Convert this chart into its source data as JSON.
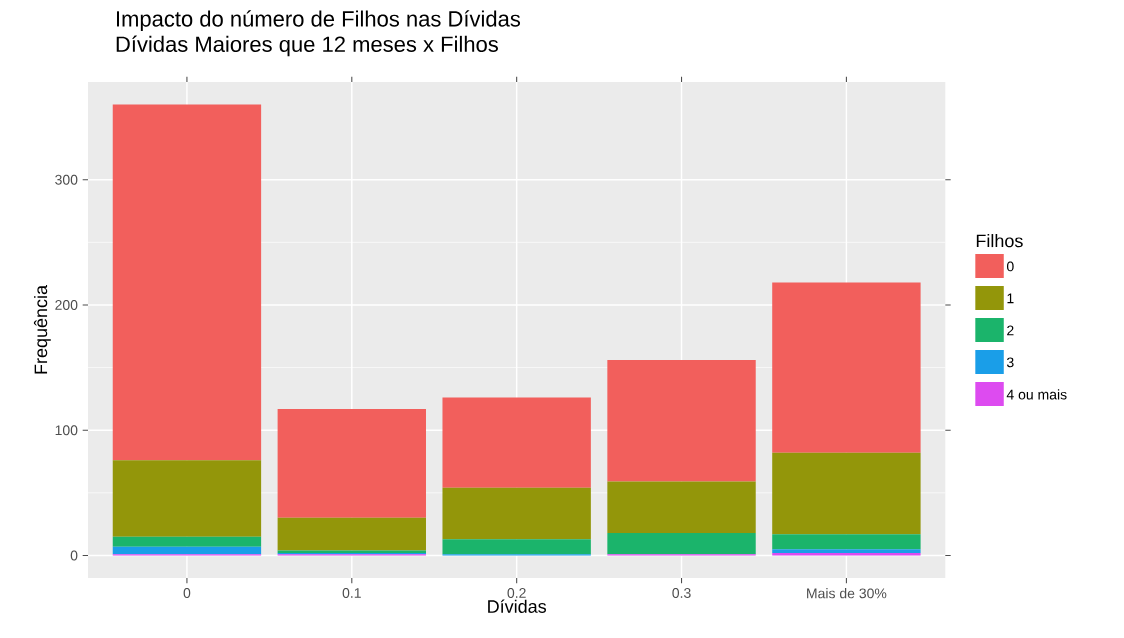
{
  "chart_data": {
    "type": "bar",
    "title": "Impacto do número de Filhos nas Dívidas",
    "subtitle": "Dívidas Maiores que 12 meses x Filhos",
    "xlabel": "Dívidas",
    "ylabel": "Frequência",
    "legend_title": "Filhos",
    "categories": [
      "0",
      "0.1",
      "0.2",
      "0.3",
      "Mais de 30%"
    ],
    "stacked": true,
    "series": [
      {
        "name": "4 ou mais",
        "color": "#dd4bf0",
        "values": [
          1,
          1,
          0,
          1,
          2
        ]
      },
      {
        "name": "3",
        "color": "#1a9ee8",
        "values": [
          6,
          1,
          1,
          0,
          3
        ]
      },
      {
        "name": "2",
        "color": "#1bb46b",
        "values": [
          8,
          2,
          12,
          17,
          12
        ]
      },
      {
        "name": "1",
        "color": "#93960a",
        "values": [
          61,
          26,
          41,
          41,
          65
        ]
      },
      {
        "name": "0",
        "color": "#f25f5c",
        "values": [
          284,
          87,
          72,
          97,
          136
        ]
      }
    ],
    "ylim": [
      -18,
      378
    ],
    "yticks": [
      0,
      100,
      200,
      300
    ],
    "grid": true,
    "legend": "right"
  }
}
